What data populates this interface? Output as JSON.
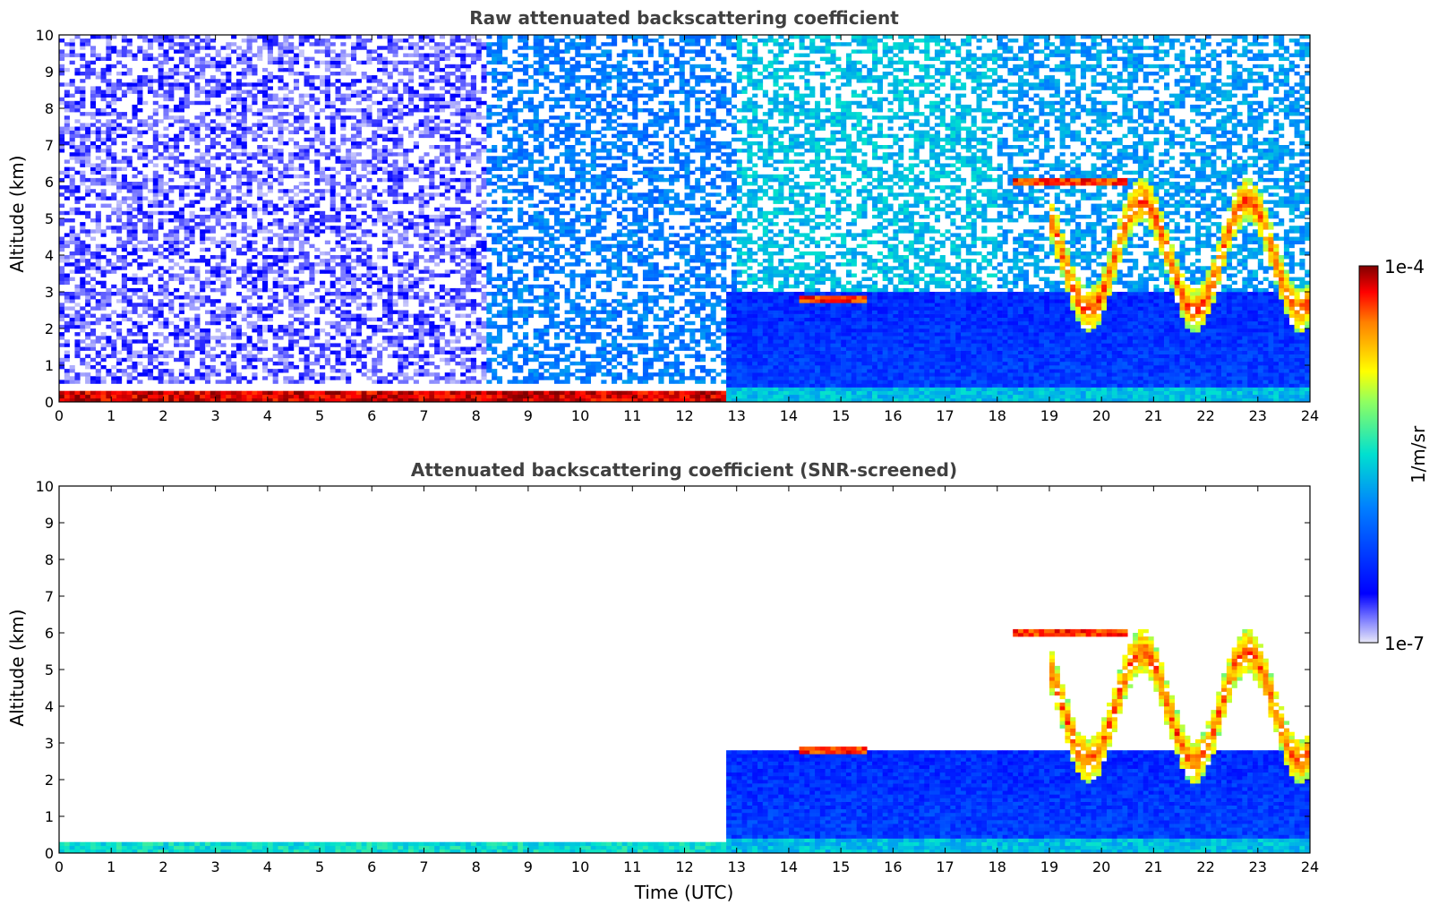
{
  "chart_data": [
    {
      "type": "heatmap",
      "title": "Raw attenuated backscattering coefficient",
      "xlabel": "",
      "ylabel": "Altitude (km)",
      "xlim": [
        0,
        24
      ],
      "ylim": [
        0,
        10
      ],
      "xticks": [
        0,
        1,
        2,
        3,
        4,
        5,
        6,
        7,
        8,
        9,
        10,
        11,
        12,
        13,
        14,
        15,
        16,
        17,
        18,
        19,
        20,
        21,
        22,
        23,
        24
      ],
      "yticks": [
        0,
        1,
        2,
        3,
        4,
        5,
        6,
        7,
        8,
        9,
        10
      ],
      "screened": false,
      "features": [
        {
          "kind": "noise_region",
          "x": [
            0,
            8.2
          ],
          "y": [
            0.5,
            10
          ],
          "level": 0.08
        },
        {
          "kind": "noise_region",
          "x": [
            8.2,
            13
          ],
          "y": [
            0.5,
            10
          ],
          "level": 0.35
        },
        {
          "kind": "noise_region",
          "x": [
            13,
            18
          ],
          "y": [
            0.5,
            10
          ],
          "level": 0.45
        },
        {
          "kind": "noise_region",
          "x": [
            18,
            24
          ],
          "y": [
            0.5,
            10
          ],
          "level": 0.4
        },
        {
          "kind": "boundary_layer",
          "x": [
            12.8,
            24
          ],
          "y": [
            0,
            3
          ],
          "level": 0.25
        },
        {
          "kind": "surface_layer",
          "x": [
            0,
            12.8
          ],
          "y_top": 0.3,
          "level": 0.95
        },
        {
          "kind": "cloud_layer",
          "x": [
            14.2,
            15.5
          ],
          "y": 2.8,
          "level": 0.9
        },
        {
          "kind": "cloud_layer",
          "x": [
            18.3,
            20.5
          ],
          "y": 6.0,
          "level": 0.9
        },
        {
          "kind": "cloud_layer",
          "x": [
            19.0,
            24
          ],
          "y": [
            2.5,
            5.5
          ],
          "level": 0.65
        }
      ]
    },
    {
      "type": "heatmap",
      "title": "Attenuated backscattering coefficient (SNR-screened)",
      "xlabel": "Time (UTC)",
      "ylabel": "Altitude (km)",
      "xlim": [
        0,
        24
      ],
      "ylim": [
        0,
        10
      ],
      "xticks": [
        0,
        1,
        2,
        3,
        4,
        5,
        6,
        7,
        8,
        9,
        10,
        11,
        12,
        13,
        14,
        15,
        16,
        17,
        18,
        19,
        20,
        21,
        22,
        23,
        24
      ],
      "yticks": [
        0,
        1,
        2,
        3,
        4,
        5,
        6,
        7,
        8,
        9,
        10
      ],
      "screened": true,
      "features": [
        {
          "kind": "boundary_layer",
          "x": [
            12.8,
            24
          ],
          "y": [
            0,
            2.8
          ],
          "level": 0.25
        },
        {
          "kind": "surface_layer",
          "x": [
            0,
            12.8
          ],
          "y_top": 0.35,
          "level": 0.5
        },
        {
          "kind": "cloud_layer",
          "x": [
            14.2,
            15.5
          ],
          "y": 2.8,
          "level": 0.9
        },
        {
          "kind": "cloud_layer",
          "x": [
            18.3,
            20.5
          ],
          "y": 6.0,
          "level": 0.9
        },
        {
          "kind": "cloud_layer",
          "x": [
            19.0,
            24
          ],
          "y": [
            2.5,
            5.5
          ],
          "level": 0.65
        }
      ]
    }
  ],
  "colorbar": {
    "label": "1/m/sr",
    "max_label": "1e-4",
    "min_label": "1e-7",
    "scale": "log",
    "range": [
      1e-07,
      0.0001
    ],
    "colormap": "jet"
  }
}
